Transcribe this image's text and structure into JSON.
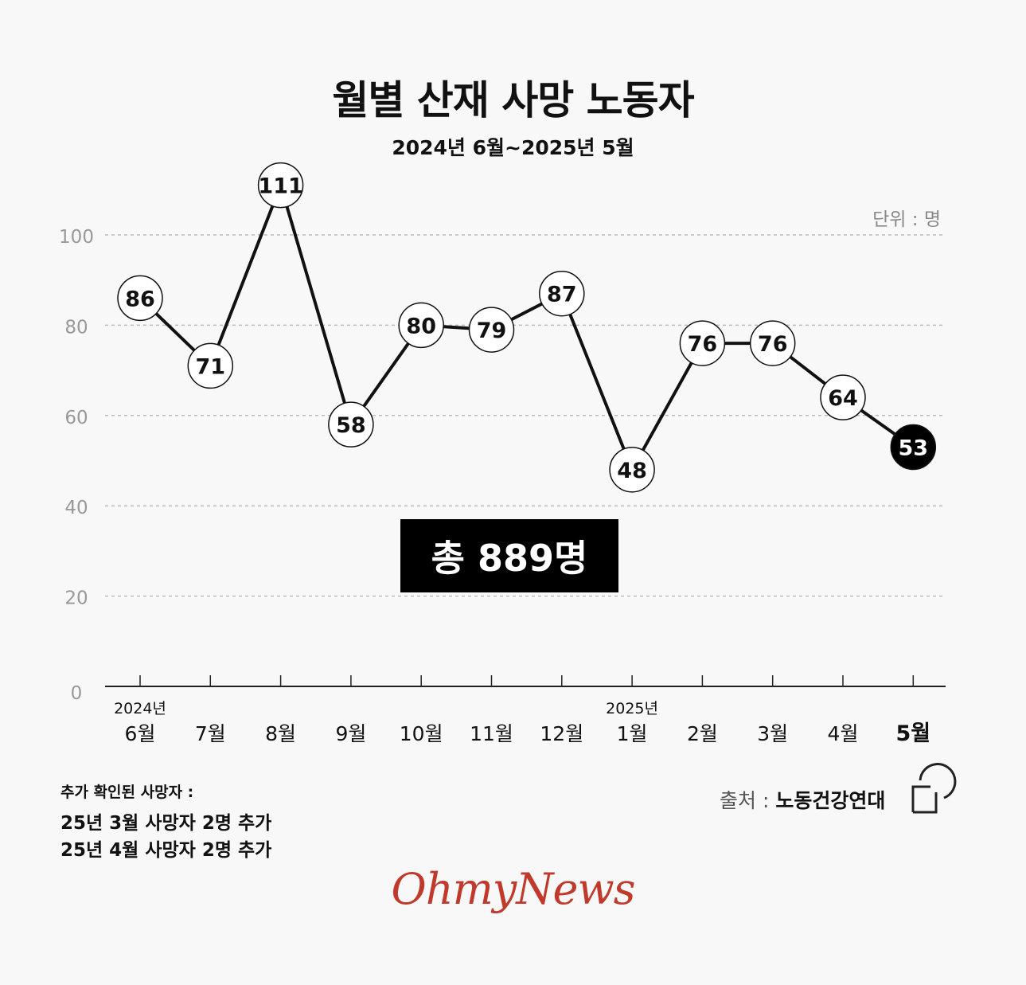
{
  "chart_data": {
    "type": "line",
    "title": "월별 산재 사망 노동자",
    "subtitle": "2024년 6월~2025년 5월",
    "unit_label": "단위 : 명",
    "categories": [
      "6월",
      "7월",
      "8월",
      "9월",
      "10월",
      "11월",
      "12월",
      "1월",
      "2월",
      "3월",
      "4월",
      "5월"
    ],
    "year_labels": [
      {
        "index": 0,
        "label": "2024년"
      },
      {
        "index": 7,
        "label": "2025년"
      }
    ],
    "values": [
      86,
      71,
      111,
      58,
      80,
      79,
      87,
      48,
      76,
      76,
      64,
      53
    ],
    "highlight_index": 11,
    "ylim": [
      0,
      100
    ],
    "yticks": [
      0,
      20,
      40,
      60,
      80,
      100
    ],
    "grid": true,
    "total_label": "총 889명"
  },
  "notes": {
    "title": "추가 확인된 사망자 :",
    "lines": [
      "25년 3월 사망자 2명 추가",
      "25년 4월 사망자 2명 추가"
    ]
  },
  "source": {
    "label": "출처 :",
    "name": "노동건강연대"
  },
  "brand": "OhmyNews",
  "colors": {
    "line": "#111111",
    "grid": "#bbbbbb",
    "highlight": "#000000",
    "brand": "#c0392b",
    "tick_text": "#999999"
  }
}
